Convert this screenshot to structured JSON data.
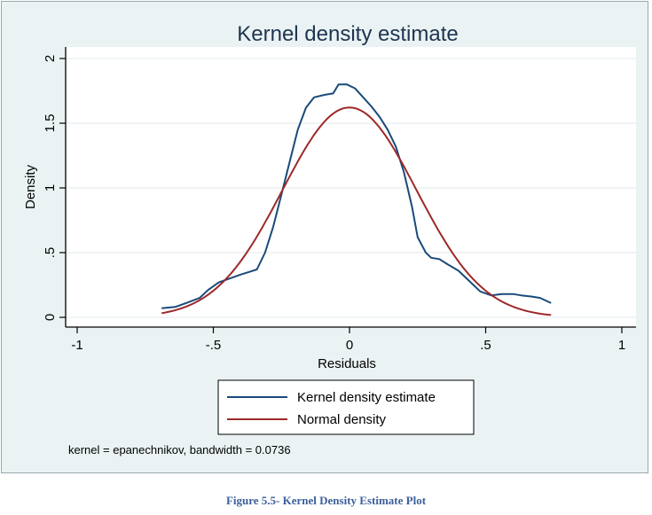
{
  "chart_data": {
    "type": "line",
    "title": "Kernel density estimate",
    "xlabel": "Residuals",
    "ylabel": "Density",
    "xlim": [
      -1,
      1
    ],
    "ylim": [
      0,
      2
    ],
    "x_ticks": [
      -1,
      -0.5,
      0,
      0.5,
      1
    ],
    "x_tick_labels": [
      "-1",
      "-.5",
      "0",
      ".5",
      "1"
    ],
    "y_ticks": [
      0,
      0.5,
      1,
      1.5,
      2
    ],
    "y_tick_labels": [
      "0",
      ".5",
      "1",
      "1.5",
      "2"
    ],
    "grid": "horizontal",
    "legend_position": "bottom",
    "note": "kernel = epanechnikov, bandwidth = 0.0736",
    "series": [
      {
        "name": "Kernel density estimate",
        "color": "#1a4a7a",
        "points": [
          [
            -0.69,
            0.07
          ],
          [
            -0.64,
            0.08
          ],
          [
            -0.6,
            0.11
          ],
          [
            -0.55,
            0.15
          ],
          [
            -0.52,
            0.21
          ],
          [
            -0.48,
            0.27
          ],
          [
            -0.44,
            0.3
          ],
          [
            -0.4,
            0.33
          ],
          [
            -0.37,
            0.35
          ],
          [
            -0.34,
            0.37
          ],
          [
            -0.31,
            0.5
          ],
          [
            -0.28,
            0.7
          ],
          [
            -0.25,
            0.95
          ],
          [
            -0.22,
            1.2
          ],
          [
            -0.19,
            1.45
          ],
          [
            -0.16,
            1.62
          ],
          [
            -0.13,
            1.7
          ],
          [
            -0.09,
            1.72
          ],
          [
            -0.06,
            1.73
          ],
          [
            -0.04,
            1.8
          ],
          [
            -0.01,
            1.8
          ],
          [
            0.02,
            1.77
          ],
          [
            0.05,
            1.7
          ],
          [
            0.08,
            1.63
          ],
          [
            0.11,
            1.55
          ],
          [
            0.14,
            1.45
          ],
          [
            0.17,
            1.32
          ],
          [
            0.2,
            1.12
          ],
          [
            0.23,
            0.85
          ],
          [
            0.25,
            0.62
          ],
          [
            0.28,
            0.5
          ],
          [
            0.3,
            0.46
          ],
          [
            0.33,
            0.45
          ],
          [
            0.36,
            0.41
          ],
          [
            0.4,
            0.36
          ],
          [
            0.44,
            0.28
          ],
          [
            0.48,
            0.2
          ],
          [
            0.52,
            0.17
          ],
          [
            0.56,
            0.18
          ],
          [
            0.6,
            0.18
          ],
          [
            0.63,
            0.17
          ],
          [
            0.67,
            0.16
          ],
          [
            0.7,
            0.15
          ],
          [
            0.74,
            0.11
          ]
        ]
      },
      {
        "name": "Normal density",
        "color": "#9c2a2a",
        "distribution": "normal",
        "mean": 0.0,
        "sd": 0.246,
        "range": [
          -0.69,
          0.74
        ]
      }
    ]
  },
  "caption": "Figure 5.5- Kernel Density Estimate Plot"
}
